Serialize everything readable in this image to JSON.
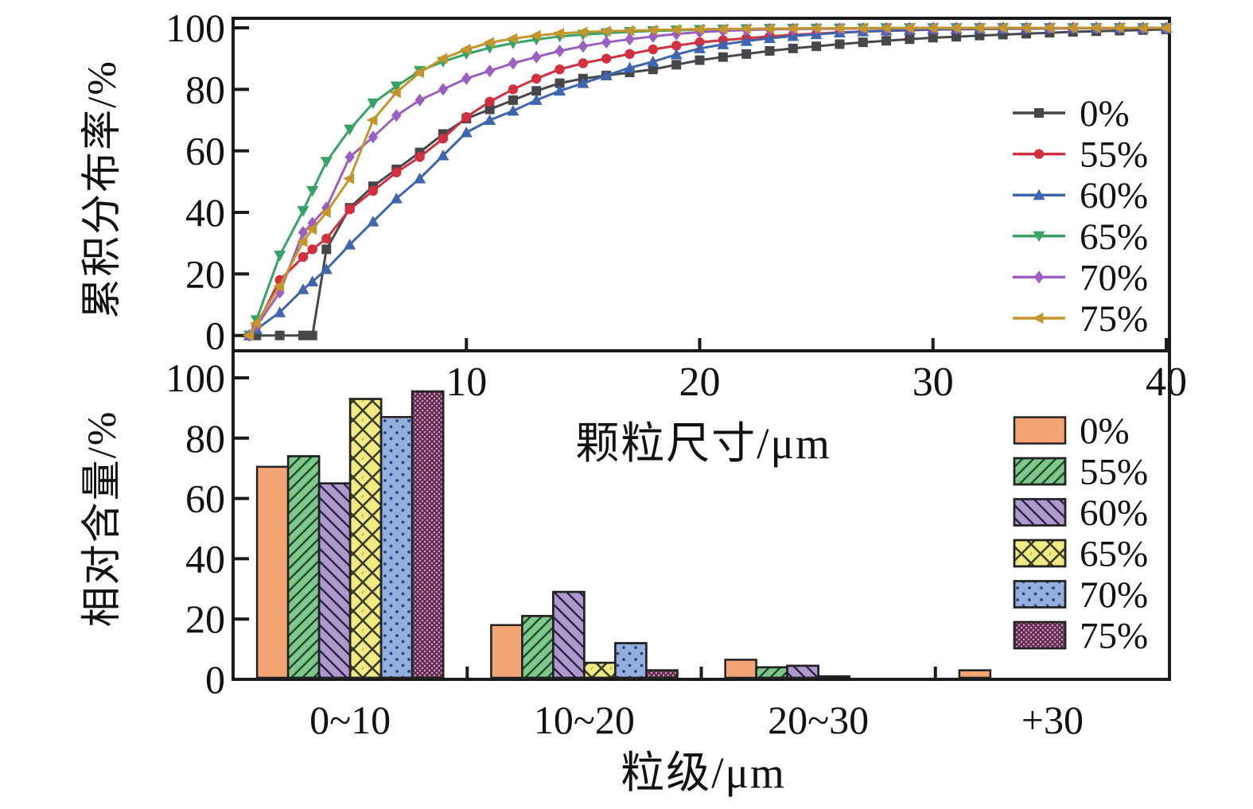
{
  "figure": {
    "background": "#ffffff",
    "axis_color": "#1a1a1a",
    "tick_font_size": 50
  },
  "chart_data": [
    {
      "id": "cumulative-distribution",
      "type": "line",
      "title": "",
      "xlabel": "颗粒尺寸/μm",
      "ylabel": "累积分布率/%",
      "xlim": [
        0,
        40
      ],
      "ylim": [
        0,
        100
      ],
      "xticks": [
        "10",
        "20",
        "30",
        "40"
      ],
      "xtick_values": [
        10,
        20,
        30,
        40
      ],
      "yticks": [
        "0",
        "20",
        "40",
        "60",
        "80",
        "100"
      ],
      "ytick_values": [
        0,
        20,
        40,
        60,
        80,
        100
      ],
      "grid": false,
      "legend_position": "right-middle",
      "x": [
        0.7,
        1,
        2,
        3,
        3.4,
        4,
        5,
        6,
        7,
        8,
        9,
        10,
        11,
        12,
        13,
        14,
        15,
        16,
        17,
        18,
        19,
        20,
        21,
        22,
        23,
        24,
        25,
        26,
        27,
        28,
        29,
        30,
        31,
        32,
        33,
        34,
        35,
        36,
        37,
        38,
        39,
        40
      ],
      "series": [
        {
          "name": "0%",
          "color": "#45474b",
          "marker": "square",
          "values": [
            0,
            0,
            0,
            0,
            0,
            28,
            41.5,
            48.5,
            54,
            59.5,
            65.5,
            70.5,
            73.5,
            76.5,
            79.5,
            82,
            83.5,
            84.5,
            85.5,
            86.5,
            88,
            89.5,
            90.5,
            91.5,
            92.5,
            93.3,
            94,
            94.7,
            95.3,
            95.8,
            96.3,
            96.8,
            97.1,
            97.5,
            97.8,
            98.1,
            98.4,
            98.7,
            98.9,
            99.1,
            99.3,
            99.5
          ]
        },
        {
          "name": "55%",
          "color": "#d2303e",
          "marker": "circle",
          "values": [
            0,
            3,
            18,
            25.5,
            28,
            31.5,
            41,
            47,
            53,
            58,
            64,
            71,
            76,
            80,
            83.5,
            86.5,
            88.5,
            90,
            91.5,
            93,
            94.2,
            95.3,
            96,
            96.6,
            97.2,
            97.7,
            98.1,
            98.5,
            98.8,
            99,
            99.2,
            99.4,
            99.5,
            99.6,
            99.7,
            99.75,
            99.8,
            99.85,
            99.9,
            99.93,
            99.96,
            100
          ]
        },
        {
          "name": "60%",
          "color": "#3f65ae",
          "marker": "triangle-up",
          "values": [
            0,
            2,
            7.5,
            15,
            17.5,
            21.5,
            29.5,
            37,
            44.5,
            51,
            58.5,
            66,
            70,
            73,
            76.5,
            79.5,
            82,
            84.5,
            87,
            89,
            91.3,
            93.3,
            94.6,
            95.7,
            96.6,
            97.3,
            97.9,
            98.4,
            98.8,
            99.1,
            99.3,
            99.5,
            99.6,
            99.7,
            99.75,
            99.8,
            99.85,
            99.9,
            99.93,
            99.96,
            99.98,
            100
          ]
        },
        {
          "name": "65%",
          "color": "#36a266",
          "marker": "triangle-down",
          "values": [
            0,
            5,
            26,
            40.5,
            47,
            56.5,
            67,
            75.5,
            81,
            86,
            89,
            91.5,
            93.5,
            95,
            96.2,
            97.2,
            97.8,
            98.3,
            98.7,
            99,
            99.2,
            99.4,
            99.5,
            99.6,
            99.7,
            99.75,
            99.8,
            99.85,
            99.9,
            99.92,
            99.94,
            99.96,
            99.97,
            99.98,
            99.99,
            100,
            100,
            100,
            100,
            100,
            100,
            100
          ]
        },
        {
          "name": "70%",
          "color": "#9b5fc0",
          "marker": "diamond",
          "values": [
            0,
            3,
            14,
            33.5,
            36.5,
            41.5,
            58,
            64.5,
            71.5,
            76.5,
            80,
            83.5,
            86,
            88.5,
            90.5,
            92.5,
            94,
            95.3,
            96.3,
            97.2,
            98,
            98.6,
            99,
            99.3,
            99.5,
            99.6,
            99.7,
            99.75,
            99.8,
            99.85,
            99.9,
            99.92,
            99.94,
            99.96,
            99.97,
            99.98,
            99.99,
            100,
            100,
            100,
            100,
            100
          ]
        },
        {
          "name": "75%",
          "color": "#c2952d",
          "marker": "triangle-left",
          "values": [
            0,
            4,
            16,
            30.5,
            34.5,
            40,
            51,
            70,
            79,
            85.5,
            90,
            93,
            95.2,
            96.5,
            97.5,
            98.2,
            98.6,
            98.9,
            99.1,
            99.3,
            99.45,
            99.55,
            99.65,
            99.7,
            99.75,
            99.8,
            99.85,
            99.88,
            99.9,
            99.92,
            99.94,
            99.96,
            99.97,
            99.98,
            99.99,
            100,
            100,
            100,
            100,
            100,
            100,
            100
          ]
        }
      ],
      "legend": [
        "0%",
        "55%",
        "60%",
        "65%",
        "70%",
        "75%"
      ]
    },
    {
      "id": "relative-content",
      "type": "bar",
      "title": "",
      "xlabel": "粒级/μm",
      "ylabel": "相对含量/%",
      "ylim": [
        0,
        100
      ],
      "yticks": [
        "0",
        "20",
        "40",
        "60",
        "80",
        "100"
      ],
      "ytick_values": [
        0,
        20,
        40,
        60,
        80,
        100
      ],
      "grid": false,
      "legend_position": "right-middle",
      "categories": [
        "0~10",
        "10~20",
        "20~30",
        "+30"
      ],
      "series": [
        {
          "name": "0%",
          "color": "#f2a475",
          "hatch": "none",
          "values": [
            70.5,
            18,
            6.5,
            3
          ]
        },
        {
          "name": "55%",
          "color": "#80c78c",
          "hatch": "slash",
          "values": [
            74,
            21,
            4,
            0
          ]
        },
        {
          "name": "60%",
          "color": "#ae98cd",
          "hatch": "backslash",
          "values": [
            65,
            29,
            4.5,
            0
          ]
        },
        {
          "name": "65%",
          "color": "#efea84",
          "hatch": "cross",
          "values": [
            93,
            5.5,
            1,
            0
          ]
        },
        {
          "name": "70%",
          "color": "#94afdf",
          "hatch": "dots",
          "values": [
            87,
            12,
            0.5,
            0
          ]
        },
        {
          "name": "75%",
          "color": "#c28fb4",
          "hatch": "dense",
          "values": [
            95.5,
            3,
            0,
            0
          ]
        }
      ],
      "legend": [
        "0%",
        "55%",
        "60%",
        "65%",
        "70%",
        "75%"
      ]
    }
  ]
}
